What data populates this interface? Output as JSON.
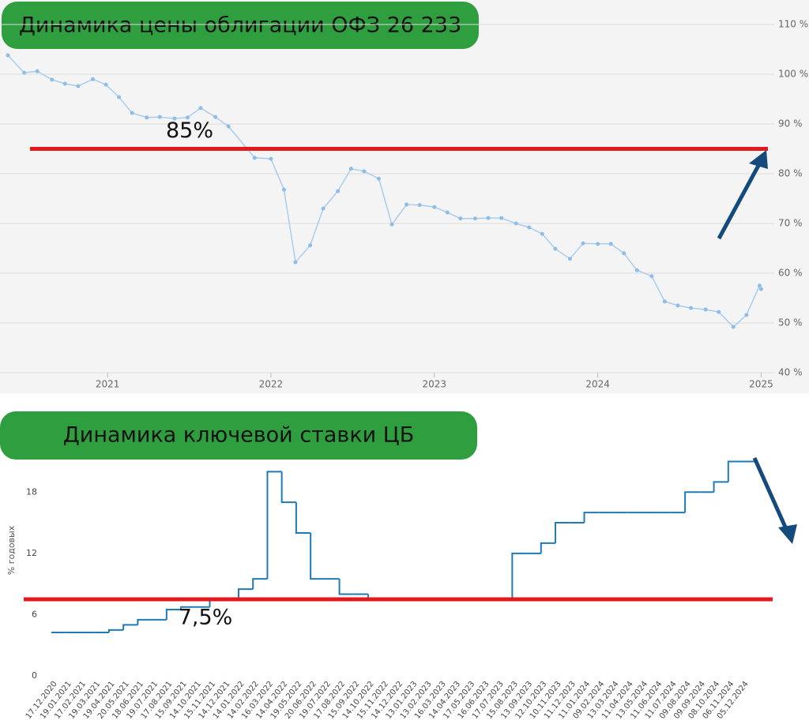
{
  "chart_data": [
    {
      "type": "line",
      "title": "Динамика цены облигации ОФЗ 26 233",
      "x": [
        2020.39,
        2020.49,
        2020.57,
        2020.66,
        2020.74,
        2020.82,
        2020.91,
        2020.99,
        2021.07,
        2021.15,
        2021.24,
        2021.32,
        2021.41,
        2021.49,
        2021.57,
        2021.66,
        2021.74,
        2021.9,
        2022.0,
        2022.08,
        2022.15,
        2022.24,
        2022.32,
        2022.41,
        2022.49,
        2022.57,
        2022.66,
        2022.74,
        2022.83,
        2022.91,
        2023.0,
        2023.08,
        2023.16,
        2023.25,
        2023.33,
        2023.41,
        2023.5,
        2023.58,
        2023.66,
        2023.74,
        2023.83,
        2023.91,
        2024.0,
        2024.08,
        2024.16,
        2024.24,
        2024.33,
        2024.41,
        2024.49,
        2024.57,
        2024.66,
        2024.74,
        2024.83,
        2024.91,
        2024.99,
        2025.0
      ],
      "values": [
        103.8,
        100.3,
        100.6,
        98.9,
        98.1,
        97.6,
        99.0,
        97.9,
        95.4,
        92.2,
        91.3,
        91.4,
        91.1,
        91.3,
        93.2,
        91.4,
        89.5,
        83.2,
        83.0,
        76.8,
        62.2,
        65.6,
        73.0,
        76.5,
        81.0,
        80.5,
        79.0,
        69.8,
        73.8,
        73.7,
        73.3,
        72.2,
        71.0,
        71.0,
        71.1,
        71.1,
        70.0,
        69.2,
        67.9,
        64.9,
        62.9,
        66.0,
        65.9,
        65.9,
        64.0,
        60.6,
        59.4,
        54.3,
        53.5,
        53.0,
        52.7,
        52.2,
        49.2,
        51.6,
        57.5,
        56.8
      ],
      "color": "#a9cdee",
      "xlim": [
        2020.342,
        2025.08
      ],
      "xticks": [
        2021,
        2022,
        2023,
        2024,
        2025
      ],
      "ylim": [
        40,
        110
      ],
      "yticks": [
        {
          "value": 40,
          "label": "40 %"
        },
        {
          "value": 50,
          "label": "50 %"
        },
        {
          "value": 60,
          "label": "60 %"
        },
        {
          "value": 70,
          "label": "70 %"
        },
        {
          "value": 80,
          "label": "80 %"
        },
        {
          "value": 90,
          "label": "90 %"
        },
        {
          "value": 100,
          "label": "100 %"
        },
        {
          "value": 110,
          "label": "110 %"
        }
      ],
      "grid": true,
      "reference_line": {
        "value": 85,
        "label": "85%",
        "color": "#e3191c"
      }
    },
    {
      "type": "step",
      "title": "Динамика ключевой ставки ЦБ",
      "ylabel": "% годовых",
      "categories": [
        "17.12.2020",
        "19.01.2021",
        "17.02.2021",
        "19.03.2021",
        "19.04.2021",
        "20.05.2021",
        "18.06.2021",
        "19.07.2021",
        "17.08.2021",
        "15.09.2021",
        "14.10.2021",
        "15.11.2021",
        "14.12.2021",
        "14.01.2022",
        "14.02.2022",
        "16.03.2022",
        "14.04.2022",
        "19.05.2022",
        "20.06.2022",
        "19.07.2022",
        "17.08.2022",
        "15.09.2022",
        "14.10.2022",
        "15.11.2022",
        "14.12.2022",
        "13.01.2023",
        "13.02.2023",
        "16.03.2023",
        "14.04.2023",
        "17.05.2023",
        "16.06.2023",
        "17.07.2023",
        "15.08.2023",
        "13.09.2023",
        "12.10.2023",
        "10.11.2023",
        "11.12.2023",
        "11.01.2024",
        "09.02.2024",
        "13.03.2024",
        "11.04.2024",
        "13.05.2024",
        "11.06.2024",
        "11.07.2024",
        "09.08.2024",
        "09.09.2024",
        "08.10.2024",
        "06.11.2024",
        "05.12.2024"
      ],
      "values": [
        4.25,
        4.25,
        4.25,
        4.25,
        4.5,
        5,
        5.5,
        5.5,
        6.5,
        6.75,
        6.75,
        7.5,
        7.5,
        8.5,
        9.5,
        20,
        17,
        14,
        9.5,
        9.5,
        8,
        8,
        7.5,
        7.5,
        7.5,
        7.5,
        7.5,
        7.5,
        7.5,
        7.5,
        7.5,
        7.5,
        12,
        12,
        13,
        15,
        15,
        16,
        16,
        16,
        16,
        16,
        16,
        16,
        18,
        18,
        19,
        21,
        21
      ],
      "color": "#1f7ab5",
      "ylim": [
        0,
        21.5
      ],
      "yticks": [
        0,
        6,
        12,
        18
      ],
      "reference_line": {
        "value": 7.5,
        "label": "7,5%",
        "color": "#e3191c"
      }
    }
  ]
}
